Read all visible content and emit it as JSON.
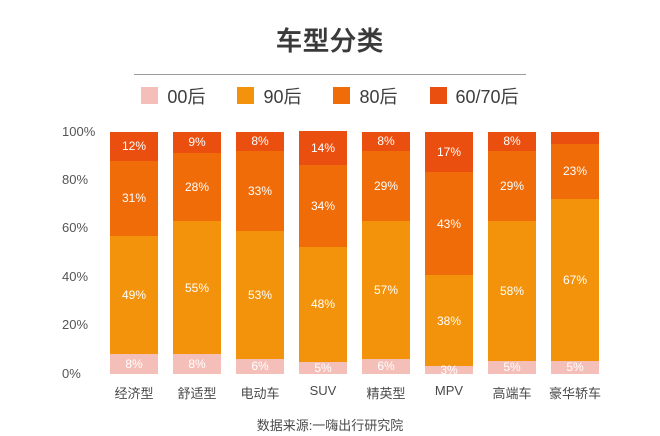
{
  "title": "车型分类",
  "footer": {
    "source": "数据来源:一嗨出行研究院"
  },
  "chart_data": {
    "type": "bar",
    "stacked": true,
    "percent": true,
    "title": "车型分类",
    "xlabel": "",
    "ylabel": "",
    "ylim": [
      0,
      100
    ],
    "grid": false,
    "legend_position": "top",
    "y_ticks": [
      "0%",
      "20%",
      "40%",
      "60%",
      "80%",
      "100%"
    ],
    "categories": [
      "经济型",
      "舒适型",
      "电动车",
      "SUV",
      "精英型",
      "MPV",
      "高端车",
      "豪华轿车"
    ],
    "series": [
      {
        "name": "00后",
        "color": "#F5BFB9",
        "values": [
          8,
          8,
          6,
          5,
          6,
          3,
          5,
          5
        ],
        "labels": [
          "8%",
          "8%",
          "6%",
          "5%",
          "6%",
          "3%",
          "5%",
          "5%"
        ]
      },
      {
        "name": "90后",
        "color": "#F3930B",
        "values": [
          49,
          55,
          53,
          48,
          57,
          38,
          58,
          67
        ],
        "labels": [
          "49%",
          "55%",
          "53%",
          "48%",
          "57%",
          "38%",
          "58%",
          "67%"
        ]
      },
      {
        "name": "80后",
        "color": "#EF6C09",
        "values": [
          31,
          28,
          33,
          34,
          29,
          43,
          29,
          23
        ],
        "labels": [
          "31%",
          "28%",
          "33%",
          "34%",
          "29%",
          "43%",
          "29%",
          "23%"
        ]
      },
      {
        "name": "60/70后",
        "color": "#EB4F10",
        "values": [
          12,
          9,
          8,
          14,
          8,
          17,
          8,
          5
        ],
        "labels": [
          "12%",
          "9%",
          "8%",
          "14%",
          "8%",
          "17%",
          "8%",
          ""
        ]
      }
    ]
  }
}
